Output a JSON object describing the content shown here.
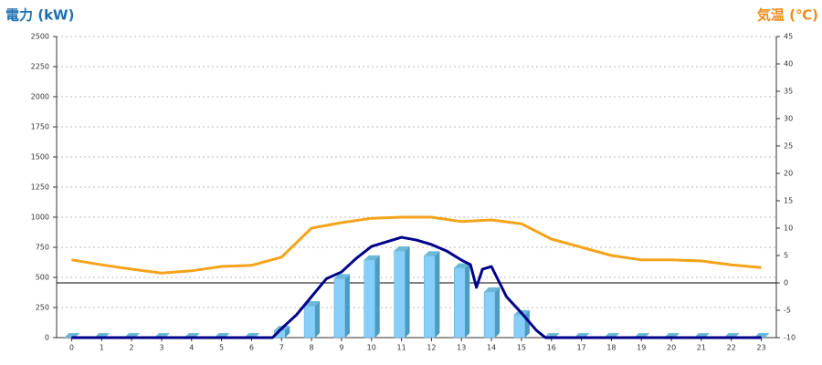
{
  "chart_data": {
    "type": "combo",
    "y_label": "電力 (kW)",
    "y2_label": "気温 (℃)",
    "xlim": [
      -0.5,
      23.5
    ],
    "xticks": [
      0,
      1,
      2,
      3,
      4,
      5,
      6,
      7,
      8,
      9,
      10,
      11,
      12,
      13,
      14,
      15,
      16,
      17,
      18,
      19,
      20,
      21,
      22,
      23
    ],
    "ylim": [
      0,
      2500
    ],
    "yticks": [
      0,
      250,
      500,
      750,
      1000,
      1250,
      1500,
      1750,
      2000,
      2250,
      2500
    ],
    "y2lim": [
      -10,
      45
    ],
    "y2ticks": [
      -10,
      -5,
      0,
      5,
      10,
      15,
      20,
      25,
      30,
      35,
      40,
      45
    ],
    "y2_reference_line": 0,
    "grid": true,
    "series": [
      {
        "type": "bar",
        "color": "#87cefa",
        "x": [
          0,
          1,
          2,
          3,
          4,
          5,
          6,
          7,
          8,
          9,
          10,
          11,
          12,
          13,
          14,
          15,
          16,
          17,
          18,
          19,
          20,
          21,
          22,
          23
        ],
        "values": [
          0,
          0,
          0,
          0,
          0,
          0,
          0,
          60,
          265,
          490,
          645,
          720,
          680,
          580,
          380,
          190,
          0,
          0,
          0,
          0,
          0,
          0,
          0,
          0
        ]
      },
      {
        "type": "line",
        "color": "#00008b",
        "x": [
          0,
          1,
          2,
          3,
          4,
          5,
          6,
          6.7,
          7,
          7.5,
          8,
          8.5,
          9,
          9.5,
          10,
          10.5,
          11,
          11.5,
          12,
          12.5,
          13,
          13.3,
          13.5,
          13.7,
          14,
          14.5,
          15,
          15.5,
          15.8,
          16,
          17,
          18,
          19,
          20,
          21,
          22,
          23
        ],
        "values": [
          0,
          0,
          0,
          0,
          0,
          0,
          0,
          0,
          75,
          190,
          340,
          490,
          545,
          660,
          757,
          795,
          833,
          810,
          773,
          720,
          644,
          606,
          417,
          568,
          590,
          340,
          205,
          60,
          0,
          0,
          0,
          0,
          0,
          0,
          0,
          0,
          0
        ]
      },
      {
        "type": "line",
        "color": "#f5a31a",
        "axis": "y2",
        "x": [
          0,
          1,
          2,
          3,
          4,
          5,
          6,
          7,
          8,
          9,
          10,
          11,
          12,
          13,
          14,
          15,
          16,
          17,
          18,
          19,
          20,
          21,
          22,
          23
        ],
        "values": [
          4.2,
          3.3,
          2.5,
          1.8,
          2.2,
          3,
          3.2,
          4.7,
          10,
          11,
          11.8,
          12,
          12,
          11.2,
          11.5,
          10.8,
          8,
          6.5,
          5,
          4.2,
          4.2,
          4,
          3.3,
          2.8
        ]
      }
    ]
  }
}
